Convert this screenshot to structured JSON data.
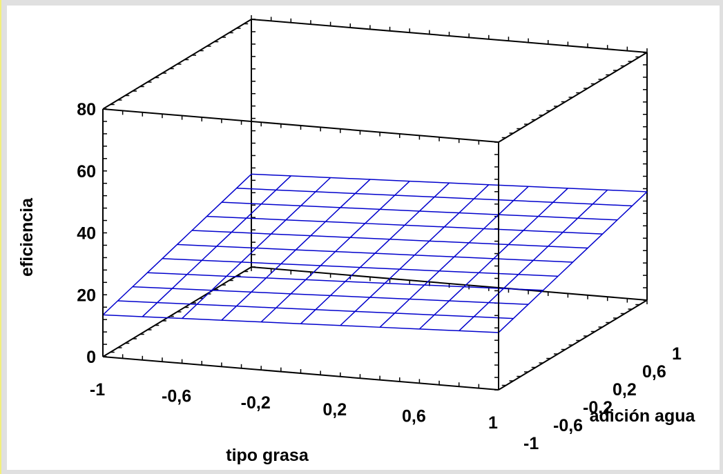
{
  "chart_data": {
    "type": "surface",
    "title": "",
    "x_axis": {
      "label": "tipo grasa",
      "range": [
        -1,
        1
      ],
      "ticks": [
        -1,
        -0.6,
        -0.2,
        0.2,
        0.6,
        1
      ],
      "tick_labels": [
        "-1",
        "-0,6",
        "-0,2",
        "0,2",
        "0,6",
        "1"
      ]
    },
    "y_axis": {
      "label": "adición agua",
      "range": [
        -1,
        1
      ],
      "ticks": [
        -1,
        -0.6,
        -0.2,
        0.2,
        0.6,
        1
      ],
      "tick_labels": [
        "-1",
        "-0,6",
        "-0,2",
        "0,2",
        "0,6",
        "1"
      ]
    },
    "z_axis": {
      "label": "eficiencia",
      "range": [
        0,
        80
      ],
      "ticks": [
        0,
        20,
        40,
        60,
        80
      ],
      "tick_labels": [
        "0",
        "20",
        "40",
        "60",
        "80"
      ]
    },
    "surface": {
      "grid_count": 11,
      "corners": {
        "x_min_y_min": 13.5,
        "x_max_y_min": 18.5,
        "x_min_y_max": 30.0,
        "x_max_y_max": 35.0
      }
    },
    "colors": {
      "surface_mesh": "#0000cc",
      "box": "#000000",
      "background": "#ffffff",
      "frame": "#e0e0e0"
    },
    "grid": false,
    "legend": "none"
  }
}
